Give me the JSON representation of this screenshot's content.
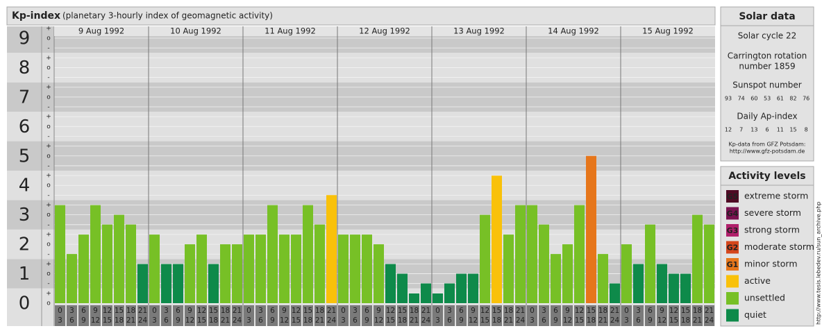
{
  "chart_data": {
    "type": "bar",
    "title": "Kp-index",
    "subtitle": "(planetary 3-hourly index of geomagnetic activity)",
    "categories": [
      "9 Aug 1992",
      "10 Aug 1992",
      "11 Aug 1992",
      "12 Aug 1992",
      "13 Aug 1992",
      "14 Aug 1992",
      "15 Aug 1992"
    ],
    "hours": [
      "0",
      "3",
      "6",
      "9",
      "12",
      "15",
      "18",
      "21",
      "24"
    ],
    "values": [
      [
        3.33,
        1.67,
        2.33,
        3.33,
        2.67,
        3,
        2.67,
        1.33
      ],
      [
        2.33,
        1.33,
        1.33,
        2,
        2.33,
        1.33,
        2,
        2
      ],
      [
        2.33,
        2.33,
        3.33,
        2.33,
        2.33,
        3.33,
        2.67,
        3.67
      ],
      [
        2.33,
        2.33,
        2.33,
        2,
        1.33,
        1,
        0.33,
        0.67
      ],
      [
        0.33,
        0.67,
        1,
        1,
        3,
        4.33,
        2.33,
        3.33
      ],
      [
        3.33,
        2.67,
        1.67,
        2,
        3.33,
        5,
        1.67,
        0.67
      ],
      [
        2,
        1.33,
        2.67,
        1.33,
        1,
        1,
        3,
        2.67
      ]
    ],
    "colors": [
      [
        "#77c026",
        "#77c026",
        "#77c026",
        "#77c026",
        "#77c026",
        "#77c026",
        "#77c026",
        "#0e8a4a"
      ],
      [
        "#77c026",
        "#0e8a4a",
        "#0e8a4a",
        "#77c026",
        "#77c026",
        "#0e8a4a",
        "#77c026",
        "#77c026"
      ],
      [
        "#77c026",
        "#77c026",
        "#77c026",
        "#77c026",
        "#77c026",
        "#77c026",
        "#77c026",
        "#f9c10a"
      ],
      [
        "#77c026",
        "#77c026",
        "#77c026",
        "#77c026",
        "#0e8a4a",
        "#0e8a4a",
        "#0e8a4a",
        "#0e8a4a"
      ],
      [
        "#0e8a4a",
        "#0e8a4a",
        "#0e8a4a",
        "#0e8a4a",
        "#77c026",
        "#f9c10a",
        "#77c026",
        "#77c026"
      ],
      [
        "#77c026",
        "#77c026",
        "#77c026",
        "#77c026",
        "#77c026",
        "#e6761b",
        "#77c026",
        "#0e8a4a"
      ],
      [
        "#77c026",
        "#0e8a4a",
        "#77c026",
        "#0e8a4a",
        "#0e8a4a",
        "#0e8a4a",
        "#77c026",
        "#77c026"
      ]
    ],
    "ylim": [
      0,
      9.4
    ],
    "yticks": [
      0,
      1,
      2,
      3,
      4,
      5,
      6,
      7,
      8,
      9
    ],
    "sub_labels": [
      "-",
      "o",
      "+"
    ]
  },
  "solar_data": {
    "title": "Solar data",
    "cycle": "Solar cycle 22",
    "carrington": [
      "Carrington rotation",
      "number 1859"
    ],
    "sunspot_title": "Sunspot number",
    "sunspot": [
      "93",
      "74",
      "60",
      "53",
      "61",
      "82",
      "76"
    ],
    "ap_title": "Daily Ap-index",
    "ap": [
      "12",
      "7",
      "13",
      "6",
      "11",
      "15",
      "8"
    ],
    "source": [
      "Kp-data from GFZ Potsdam:",
      "http://www.gfz-potsdam.de"
    ]
  },
  "activity_levels": {
    "title": "Activity levels",
    "items": [
      {
        "code": "G5",
        "label": "extreme storm",
        "color": "#4f0a24"
      },
      {
        "code": "G4",
        "label": "severe storm",
        "color": "#7a1250"
      },
      {
        "code": "G3",
        "label": "strong storm",
        "color": "#b0206b"
      },
      {
        "code": "G2",
        "label": "moderate storm",
        "color": "#d4461c"
      },
      {
        "code": "G1",
        "label": "minor storm",
        "color": "#e6761b"
      },
      {
        "code": null,
        "label": "active",
        "color": "#f9c10a"
      },
      {
        "code": null,
        "label": "unsettled",
        "color": "#77c026"
      },
      {
        "code": null,
        "label": "quiet",
        "color": "#0e8a4a"
      }
    ]
  },
  "credit": "http://www.tesis.lebedev.ru/sun_archive.php"
}
